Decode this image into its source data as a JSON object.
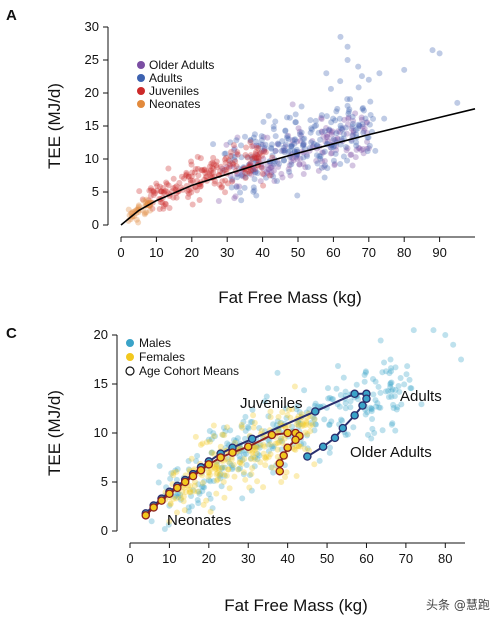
{
  "watermark": "头条 @慧跑",
  "colors": {
    "older_adults": "#7b4ea3",
    "adults": "#3d62b0",
    "juveniles": "#cc2a2a",
    "neonates": "#e28a3c",
    "males": "#3aa3c8",
    "females": "#f2c81e",
    "male_line": "#2a2f6e",
    "female_line": "#8b1f1f",
    "fit_line": "#000000"
  },
  "chart_data": [
    {
      "panel": "A",
      "type": "scatter",
      "xlabel": "Fat Free Mass (kg)",
      "ylabel": "TEE (MJ/d)",
      "xlim": [
        0,
        100
      ],
      "ylim": [
        0,
        30
      ],
      "xticks": [
        "0",
        "10",
        "20",
        "30",
        "40",
        "50",
        "60",
        "70",
        "80",
        "90"
      ],
      "yticks": [
        "0",
        "5",
        "10",
        "15",
        "20",
        "25",
        "30"
      ],
      "grid": false,
      "legend_position": "top-left",
      "series": [
        {
          "name": "Older Adults",
          "color_key": "older_adults",
          "cloud": [
            [
              30,
              8.5
            ],
            [
              40,
              9.5
            ],
            [
              50,
              10.8
            ],
            [
              60,
              12.5
            ],
            [
              70,
              13.5
            ]
          ],
          "spread": [
            4,
            2.0
          ],
          "n": 180
        },
        {
          "name": "Adults",
          "color_key": "adults",
          "cloud": [
            [
              30,
              9.5
            ],
            [
              40,
              10.5
            ],
            [
              50,
              12
            ],
            [
              60,
              14
            ],
            [
              70,
              15.5
            ]
          ],
          "spread": [
            5,
            2.6
          ],
          "n": 220
        },
        {
          "name": "Juveniles",
          "color_key": "juveniles",
          "cloud": [
            [
              8,
              3.5
            ],
            [
              15,
              5.5
            ],
            [
              22,
              7.5
            ],
            [
              30,
              8.8
            ],
            [
              40,
              10.5
            ]
          ],
          "spread": [
            3.5,
            1.4
          ],
          "n": 200
        },
        {
          "name": "Neonates",
          "color_key": "neonates",
          "cloud": [
            [
              2,
              0.8
            ],
            [
              4,
              1.5
            ],
            [
              6,
              2.3
            ],
            [
              8,
              3
            ]
          ],
          "spread": [
            1.2,
            0.6
          ],
          "n": 40
        }
      ],
      "outliers": [
        [
          62,
          28.5
        ],
        [
          64,
          27
        ],
        [
          88,
          26.5
        ],
        [
          90,
          26
        ],
        [
          80,
          23.5
        ],
        [
          67,
          24
        ],
        [
          73,
          23
        ],
        [
          95,
          18.5
        ],
        [
          58,
          23
        ],
        [
          70,
          22
        ],
        [
          64,
          25
        ]
      ],
      "fit": {
        "x": [
          0,
          5,
          10,
          20,
          30,
          40,
          50,
          60,
          70,
          80,
          90,
          100
        ],
        "y": [
          0,
          2.2,
          3.7,
          6.0,
          7.7,
          9.4,
          10.9,
          12.3,
          13.7,
          15.0,
          16.3,
          17.6
        ]
      }
    },
    {
      "panel": "C",
      "type": "scatter",
      "xlabel": "Fat Free Mass (kg)",
      "ylabel": "TEE (MJ/d)",
      "xlim": [
        0,
        85
      ],
      "ylim": [
        0,
        20
      ],
      "xticks": [
        "0",
        "10",
        "20",
        "30",
        "40",
        "50",
        "60",
        "70",
        "80"
      ],
      "yticks": [
        "0",
        "5",
        "10",
        "15",
        "20"
      ],
      "grid": false,
      "legend_position": "top-left",
      "series": [
        {
          "name": "Males",
          "color_key": "males",
          "cloud": [
            [
              10,
              3.5
            ],
            [
              20,
              6
            ],
            [
              30,
              8.5
            ],
            [
              40,
              10
            ],
            [
              50,
              12
            ],
            [
              60,
              13.5
            ],
            [
              70,
              15
            ]
          ],
          "spread": [
            5,
            1.8
          ],
          "n": 320
        },
        {
          "name": "Females",
          "color_key": "females",
          "cloud": [
            [
              10,
              3.5
            ],
            [
              20,
              6
            ],
            [
              30,
              8
            ],
            [
              38,
              9
            ],
            [
              45,
              10.5
            ]
          ],
          "spread": [
            4,
            1.6
          ],
          "n": 240
        },
        {
          "name": "Age Cohort Means",
          "color_key": "male_line",
          "marker": "open-circle",
          "cloud": [],
          "n": 0
        }
      ],
      "outliers": [
        [
          77,
          20.5
        ],
        [
          80,
          20
        ],
        [
          82,
          19
        ],
        [
          84,
          17.5
        ],
        [
          72,
          20.5
        ]
      ],
      "cohort_means": {
        "males": {
          "x": [
            4,
            6,
            8,
            10,
            12,
            14,
            16,
            18,
            20,
            23,
            26,
            31,
            47,
            57,
            60,
            60,
            59,
            57,
            54,
            52,
            49,
            45
          ],
          "y": [
            1.8,
            2.6,
            3.3,
            4,
            4.6,
            5.2,
            5.8,
            6.5,
            7.1,
            7.9,
            8.5,
            9.4,
            12.2,
            14,
            14,
            13.5,
            12.8,
            11.8,
            10.5,
            9.5,
            8.6,
            7.6
          ]
        },
        "females": {
          "x": [
            4,
            6,
            8,
            10,
            12,
            14,
            16,
            18,
            20,
            23,
            26,
            30,
            36,
            40,
            42,
            43,
            42,
            40,
            39,
            38,
            38
          ],
          "y": [
            1.6,
            2.4,
            3.1,
            3.8,
            4.4,
            5,
            5.6,
            6.2,
            6.8,
            7.5,
            8,
            8.6,
            9.8,
            10,
            10,
            9.7,
            9.3,
            8.5,
            7.7,
            6.9,
            6.1
          ]
        }
      },
      "annotations": [
        "Juveniles",
        "Adults",
        "Older Adults",
        "Neonates"
      ]
    }
  ]
}
